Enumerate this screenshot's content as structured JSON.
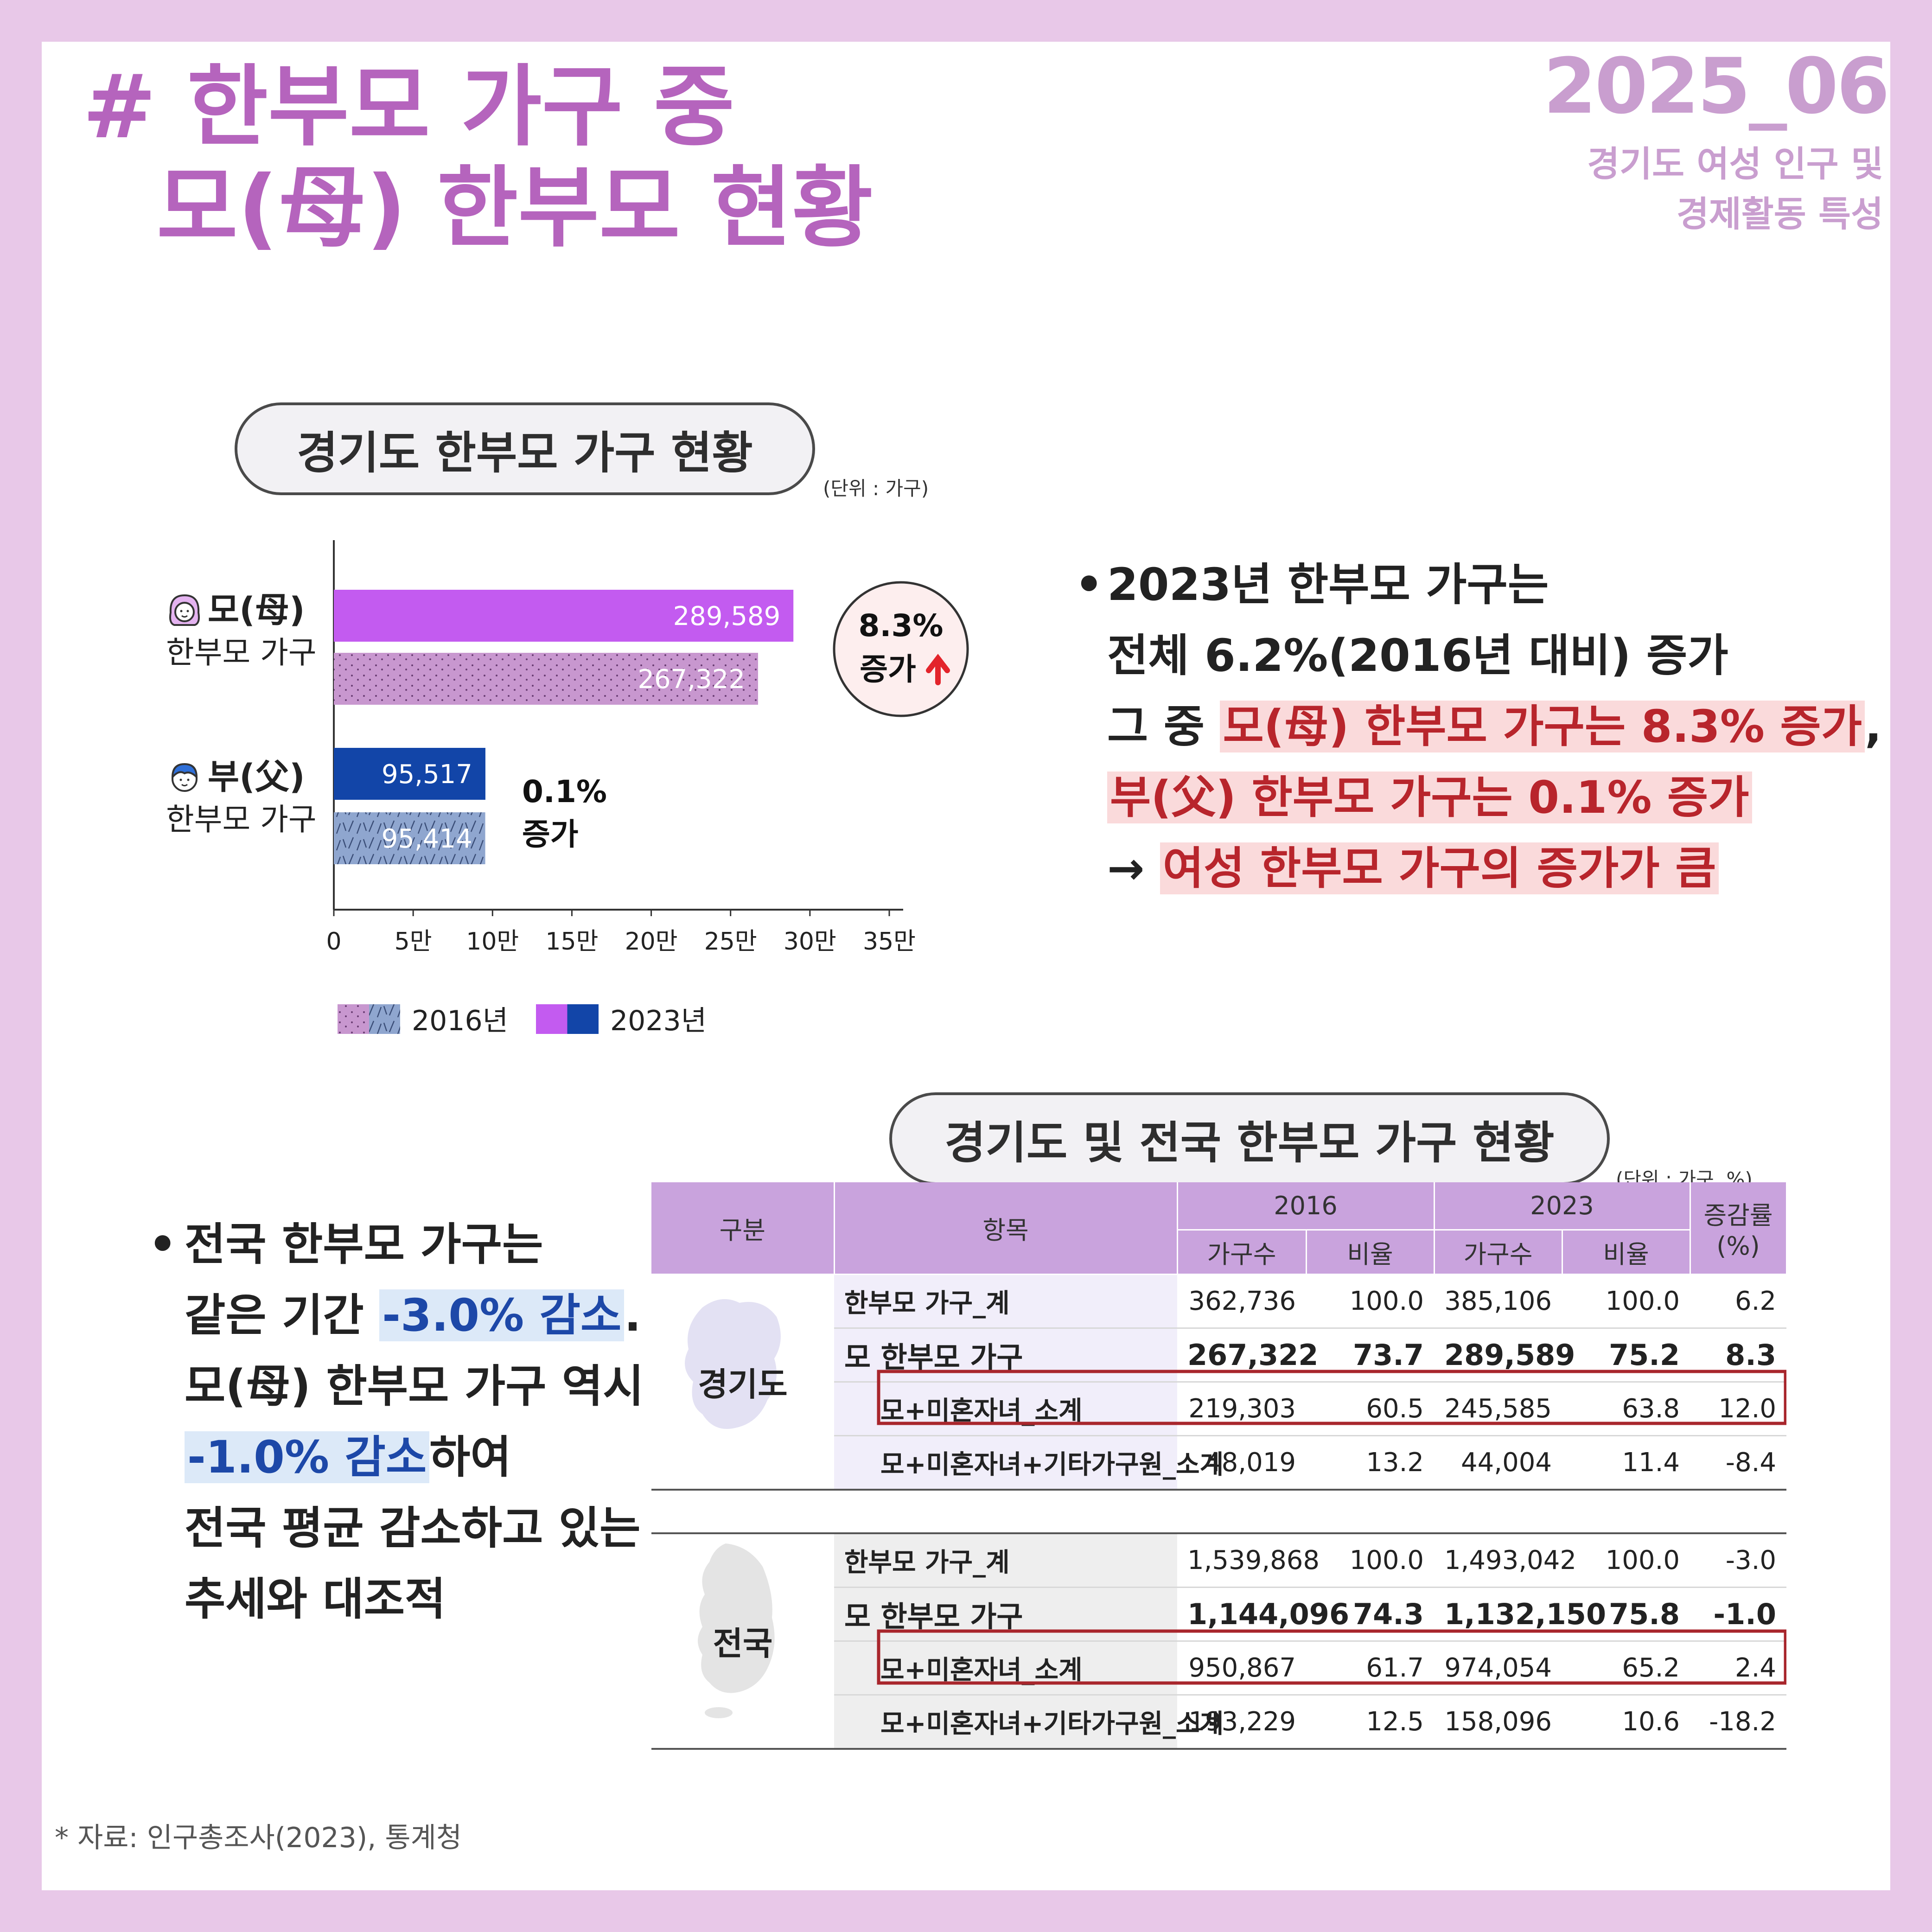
{
  "header": {
    "title_line1": "# 한부모 가구 중",
    "title_line2": "모(母) 한부모 현황",
    "issue_code": "2025_06",
    "issue_sub_line1": "경기도 여성 인구 및",
    "issue_sub_line2": "경제활동 특성"
  },
  "section1": {
    "title": "경기도 한부모 가구 현황",
    "unit": "(단위 : 가구)",
    "mother_label_1": "모(母)",
    "mother_label_2": "한부모 가구",
    "father_label_1": "부(父)",
    "father_label_2": "한부모 가구",
    "mother_change_1": "8.3%",
    "mother_change_2": "증가",
    "father_change_1": "0.1%",
    "father_change_2": "증가",
    "legend_2016": "2016년",
    "legend_2023": "2023년"
  },
  "chart_data": {
    "type": "bar",
    "orientation": "horizontal",
    "categories": [
      "모(母) 한부모 가구",
      "부(父) 한부모 가구"
    ],
    "series": [
      {
        "name": "2023년",
        "values": [
          289589,
          95517
        ],
        "colors": [
          "#C35BF0",
          "#1245A8"
        ]
      },
      {
        "name": "2016년",
        "values": [
          267322,
          95414
        ],
        "colors": [
          "#C897CF",
          "#8FA6CF"
        ]
      }
    ],
    "value_labels": {
      "2023년": [
        "289,589",
        "95,517"
      ],
      "2016년": [
        "267,322",
        "95,414"
      ]
    },
    "xlim": [
      0,
      350000
    ],
    "xticks": [
      0,
      50000,
      100000,
      150000,
      200000,
      250000,
      300000,
      350000
    ],
    "xtick_labels": [
      "0",
      "5만",
      "10만",
      "15만",
      "20만",
      "25만",
      "30만",
      "35만"
    ],
    "legend_position": "bottom-left",
    "grid": false
  },
  "bullet1": {
    "l1": "2023년 한부모 가구는",
    "l2": "전체 6.2%(2016년 대비) 증가",
    "l3_pre": "그 중 ",
    "l3_hl": "모(母) 한부모 가구는 8.3% 증가",
    "l3_post": ",",
    "l4_hl": "부(父) 한부모 가구는 0.1% 증가",
    "l5_arrow": "→ ",
    "l5_hl": "여성 한부모 가구의 증가가 큼"
  },
  "section2": {
    "title": "경기도 및 전국 한부모 가구 현황",
    "unit": "(단위 : 가구, %)"
  },
  "bullet2": {
    "l1": "전국 한부모 가구는",
    "l2_pre": "같은 기간 ",
    "l2_hl": "-3.0% 감소",
    "l2_post": ".",
    "l3": "모(母) 한부모 가구 역시",
    "l4_hl": "-1.0% 감소",
    "l4_post": "하여",
    "l5": "전국 평균 감소하고 있는",
    "l6": "추세와 대조적"
  },
  "table": {
    "h_region": "구분",
    "h_item": "항목",
    "h_2016": "2016",
    "h_2023": "2023",
    "h_rate_1": "증감률",
    "h_rate_2": "(%)",
    "h_count": "가구수",
    "h_ratio": "비율",
    "gyeonggi_label": "경기도",
    "national_label": "전국",
    "gyeonggi": [
      {
        "item": "한부모 가구_계",
        "c2016": "362,736",
        "r2016": "100.0",
        "c2023": "385,106",
        "r2023": "100.0",
        "rate": "6.2"
      },
      {
        "item": "모 한부모 가구",
        "c2016": "267,322",
        "r2016": "73.7",
        "c2023": "289,589",
        "r2023": "75.2",
        "rate": "8.3"
      },
      {
        "item": "모+미혼자녀_소계",
        "c2016": "219,303",
        "r2016": "60.5",
        "c2023": "245,585",
        "r2023": "63.8",
        "rate": "12.0"
      },
      {
        "item": "모+미혼자녀+기타가구원_소계",
        "c2016": "48,019",
        "r2016": "13.2",
        "c2023": "44,004",
        "r2023": "11.4",
        "rate": "-8.4"
      }
    ],
    "national": [
      {
        "item": "한부모 가구_계",
        "c2016": "1,539,868",
        "r2016": "100.0",
        "c2023": "1,493,042",
        "r2023": "100.0",
        "rate": "-3.0"
      },
      {
        "item": "모 한부모 가구",
        "c2016": "1,144,096",
        "r2016": "74.3",
        "c2023": "1,132,150",
        "r2023": "75.8",
        "rate": "-1.0"
      },
      {
        "item": "모+미혼자녀_소계",
        "c2016": "950,867",
        "r2016": "61.7",
        "c2023": "974,054",
        "r2023": "65.2",
        "rate": "2.4"
      },
      {
        "item": "모+미혼자녀+기타가구원_소계",
        "c2016": "193,229",
        "r2016": "12.5",
        "c2023": "158,096",
        "r2023": "10.6",
        "rate": "-18.2"
      }
    ]
  },
  "footnote": "* 자료: 인구총조사(2023), 통계청",
  "colors": {
    "frame": "#E8C8E8",
    "title": "#B564BD",
    "mother_2023": "#C35BF0",
    "mother_2016": "#C897CF",
    "father_2023": "#1245A8",
    "father_2016": "#8FA6CF",
    "highlight_red": "#B8252C",
    "highlight_blue": "#1D48A8",
    "table_header": "#C9A3DD"
  }
}
